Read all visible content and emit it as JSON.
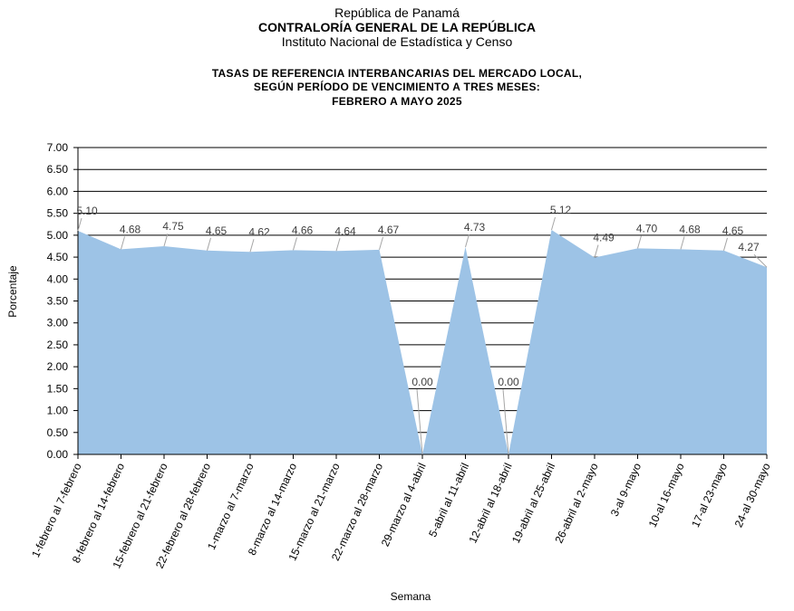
{
  "header": {
    "line1": "República de Panamá",
    "line2": "CONTRALORÍA GENERAL DE LA REPÚBLICA",
    "line3": "Instituto Nacional de Estadística y Censo"
  },
  "chart_data": {
    "type": "area",
    "title_lines": [
      "TASAS DE REFERENCIA INTERBANCARIAS DEL MERCADO LOCAL,",
      "SEGÚN PERÍODO DE VENCIMIENTO A TRES MESES:",
      "FEBRERO  A MAYO 2025"
    ],
    "xlabel": "Semana",
    "ylabel": "Porcentaje",
    "ylim": [
      0,
      7
    ],
    "ytick_step": 0.5,
    "grid": true,
    "fill_color": "#9dc3e6",
    "categories": [
      "1-febrero al 7-febrero",
      "8-febrero al 14-febrero",
      "15-febrero al 21-febrero",
      "22-febrero al 28-febrero",
      "1-marzo al 7-marzo",
      "8-marzo al 14-marzo",
      "15-marzo al 21-marzo",
      "22-marzo al 28-marzo",
      "29-marzo al 4-abril",
      "5-abril al 11-abril",
      "12-abril al 18-abril",
      "19-abril al 25-abril",
      "26-abril al 2-mayo",
      "3-al 9-mayo",
      "10-al 16-mayo",
      "17-al 23-mayo",
      "24-al 30-mayo"
    ],
    "values": [
      5.1,
      4.68,
      4.75,
      4.65,
      4.62,
      4.66,
      4.64,
      4.67,
      0.0,
      4.73,
      0.0,
      5.12,
      4.49,
      4.7,
      4.68,
      4.65,
      4.27
    ]
  }
}
